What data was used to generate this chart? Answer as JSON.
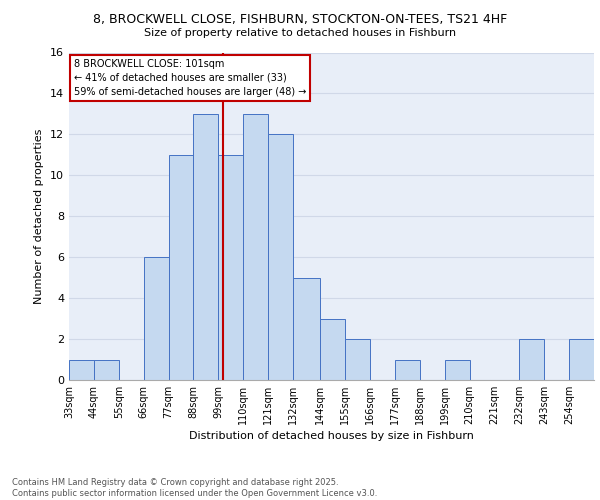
{
  "title_line1": "8, BROCKWELL CLOSE, FISHBURN, STOCKTON-ON-TEES, TS21 4HF",
  "title_line2": "Size of property relative to detached houses in Fishburn",
  "xlabel": "Distribution of detached houses by size in Fishburn",
  "ylabel": "Number of detached properties",
  "bin_labels": [
    "33sqm",
    "44sqm",
    "55sqm",
    "66sqm",
    "77sqm",
    "88sqm",
    "99sqm",
    "110sqm",
    "121sqm",
    "132sqm",
    "144sqm",
    "155sqm",
    "166sqm",
    "177sqm",
    "188sqm",
    "199sqm",
    "210sqm",
    "221sqm",
    "232sqm",
    "243sqm",
    "254sqm"
  ],
  "values": [
    1,
    1,
    0,
    6,
    11,
    13,
    11,
    13,
    12,
    5,
    3,
    2,
    0,
    1,
    0,
    1,
    0,
    0,
    2,
    0,
    2
  ],
  "bar_color": "#c5d9f0",
  "bar_edge_color": "#4472c4",
  "vline_x": 101,
  "vline_color": "#c00000",
  "annotation_text": "8 BROCKWELL CLOSE: 101sqm\n← 41% of detached houses are smaller (33)\n59% of semi-detached houses are larger (48) →",
  "annotation_box_color": "#ffffff",
  "annotation_box_edge_color": "#c00000",
  "ylim": [
    0,
    16
  ],
  "yticks": [
    0,
    2,
    4,
    6,
    8,
    10,
    12,
    14,
    16
  ],
  "grid_color": "#d0d8e8",
  "background_color": "#e8eef8",
  "footer_text": "Contains HM Land Registry data © Crown copyright and database right 2025.\nContains public sector information licensed under the Open Government Licence v3.0.",
  "bin_edges": [
    33,
    44,
    55,
    66,
    77,
    88,
    99,
    110,
    121,
    132,
    144,
    155,
    166,
    177,
    188,
    199,
    210,
    221,
    232,
    243,
    254,
    265
  ]
}
